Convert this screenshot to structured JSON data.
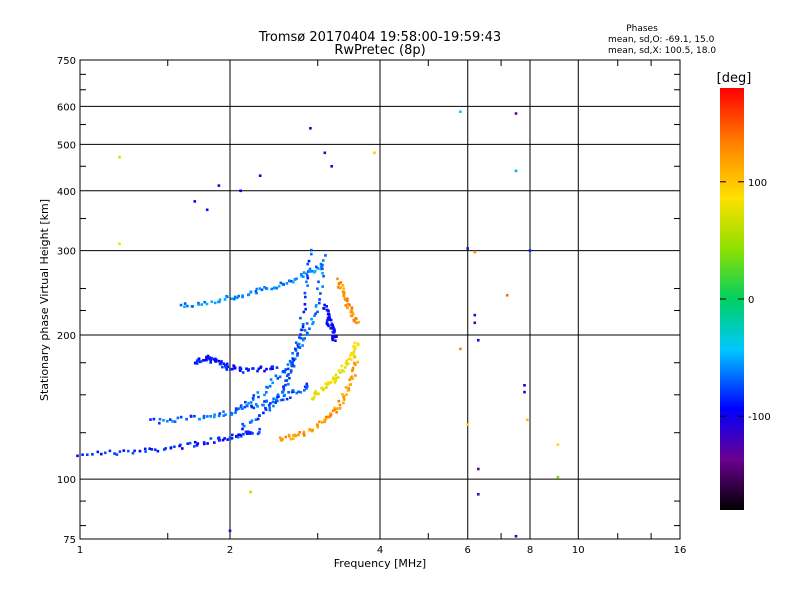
{
  "header": {
    "title": "Tromsø 20170404  19:58:00-19:59:43",
    "subtitle": "RwPretec (8p)",
    "info_title": "Phases",
    "info_line1": "mean, sd,O: -69.1, 15.0",
    "info_line2": "mean, sd,X: 100.5, 18.0"
  },
  "colorbar": {
    "label": "[deg]",
    "ticks": [
      {
        "value": 100,
        "label": "100"
      },
      {
        "value": 0,
        "label": "0"
      },
      {
        "value": -100,
        "label": "-100"
      }
    ],
    "range": [
      -180,
      180
    ]
  },
  "chart_data": {
    "type": "scatter",
    "xlabel": "Frequency [MHz]",
    "ylabel": "Stationary phase Virtual Height [km]",
    "xscale": "log",
    "yscale": "log",
    "xlim": [
      1,
      16
    ],
    "ylim": [
      75,
      750
    ],
    "grid": true,
    "x_ticks": [
      {
        "value": 1,
        "label": "1"
      },
      {
        "value": 2,
        "label": "2"
      },
      {
        "value": 4,
        "label": "4"
      },
      {
        "value": 6,
        "label": "6"
      },
      {
        "value": 8,
        "label": "8"
      },
      {
        "value": 10,
        "label": "10"
      },
      {
        "value": 16,
        "label": "16"
      }
    ],
    "y_ticks": [
      {
        "value": 75,
        "label": "75"
      },
      {
        "value": 100,
        "label": "100"
      },
      {
        "value": 200,
        "label": "200"
      },
      {
        "value": 300,
        "label": "300"
      },
      {
        "value": 400,
        "label": "400"
      },
      {
        "value": 500,
        "label": "500"
      },
      {
        "value": 600,
        "label": "600"
      },
      {
        "value": 750,
        "label": "750"
      }
    ],
    "traces": [
      {
        "x": [
          1.0,
          1.3,
          1.6,
          1.9,
          2.1,
          2.3
        ],
        "y": [
          113,
          114,
          117,
          121,
          124,
          126
        ],
        "phase": -85
      },
      {
        "x": [
          1.4,
          1.7,
          2.0,
          2.3,
          2.6,
          2.9
        ],
        "y": [
          132,
          134,
          138,
          143,
          149,
          157
        ],
        "phase": -70
      },
      {
        "x": [
          1.6,
          1.9,
          2.2,
          2.5,
          2.8,
          3.1
        ],
        "y": [
          230,
          236,
          244,
          254,
          266,
          280
        ],
        "phase": -60
      },
      {
        "x": [
          1.7,
          1.8,
          1.9,
          2.0,
          2.2,
          2.5
        ],
        "y": [
          176,
          179,
          175,
          171,
          168,
          172
        ],
        "phase": -90
      },
      {
        "x": [
          2.0,
          2.3,
          2.6,
          2.8,
          3.0,
          3.1
        ],
        "y": [
          137,
          150,
          170,
          195,
          230,
          300
        ],
        "phase": -65
      },
      {
        "x": [
          2.1,
          2.4,
          2.6,
          2.7,
          2.8,
          2.9
        ],
        "y": [
          128,
          140,
          158,
          180,
          215,
          310
        ],
        "phase": -75
      },
      {
        "x": [
          2.5,
          2.8,
          3.1,
          3.3,
          3.5,
          3.6
        ],
        "y": [
          121,
          124,
          132,
          142,
          158,
          180
        ],
        "phase": 120
      },
      {
        "x": [
          2.9,
          3.1,
          3.3,
          3.5,
          3.6
        ],
        "y": [
          148,
          155,
          165,
          180,
          195
        ],
        "phase": 80
      },
      {
        "x": [
          3.1,
          3.15,
          3.2,
          3.25
        ],
        "y": [
          230,
          215,
          205,
          195
        ],
        "phase": -95
      },
      {
        "x": [
          3.3,
          3.4,
          3.5,
          3.6
        ],
        "y": [
          260,
          240,
          225,
          210
        ],
        "phase": 125
      }
    ],
    "isolated": [
      {
        "x": 1.2,
        "y": 470,
        "phase": 70
      },
      {
        "x": 1.2,
        "y": 310,
        "phase": 80
      },
      {
        "x": 1.7,
        "y": 380,
        "phase": -100
      },
      {
        "x": 1.8,
        "y": 365,
        "phase": -90
      },
      {
        "x": 1.9,
        "y": 410,
        "phase": -110
      },
      {
        "x": 2.1,
        "y": 400,
        "phase": -95
      },
      {
        "x": 2.3,
        "y": 430,
        "phase": -100
      },
      {
        "x": 2.9,
        "y": 540,
        "phase": -110
      },
      {
        "x": 3.1,
        "y": 480,
        "phase": -115
      },
      {
        "x": 3.2,
        "y": 450,
        "phase": -105
      },
      {
        "x": 3.9,
        "y": 480,
        "phase": 95
      },
      {
        "x": 2.0,
        "y": 78,
        "phase": -120
      },
      {
        "x": 2.2,
        "y": 94,
        "phase": 55
      },
      {
        "x": 5.8,
        "y": 585,
        "phase": -40
      },
      {
        "x": 7.5,
        "y": 580,
        "phase": -130
      },
      {
        "x": 7.5,
        "y": 440,
        "phase": -50
      },
      {
        "x": 6.0,
        "y": 303,
        "phase": -110
      },
      {
        "x": 6.2,
        "y": 298,
        "phase": 130
      },
      {
        "x": 7.2,
        "y": 242,
        "phase": 140
      },
      {
        "x": 6.2,
        "y": 220,
        "phase": -120
      },
      {
        "x": 6.2,
        "y": 212,
        "phase": -130
      },
      {
        "x": 6.3,
        "y": 195,
        "phase": -90
      },
      {
        "x": 5.8,
        "y": 187,
        "phase": 130
      },
      {
        "x": 7.8,
        "y": 157,
        "phase": -100
      },
      {
        "x": 7.8,
        "y": 152,
        "phase": -110
      },
      {
        "x": 7.9,
        "y": 133,
        "phase": 100
      },
      {
        "x": 6.0,
        "y": 130,
        "phase": 90
      },
      {
        "x": 6.3,
        "y": 105,
        "phase": -130
      },
      {
        "x": 6.3,
        "y": 93,
        "phase": -120
      },
      {
        "x": 9.1,
        "y": 118,
        "phase": 90
      },
      {
        "x": 9.1,
        "y": 101,
        "phase": 40
      },
      {
        "x": 8.0,
        "y": 300,
        "phase": -85
      },
      {
        "x": 7.5,
        "y": 76,
        "phase": -110
      }
    ]
  }
}
